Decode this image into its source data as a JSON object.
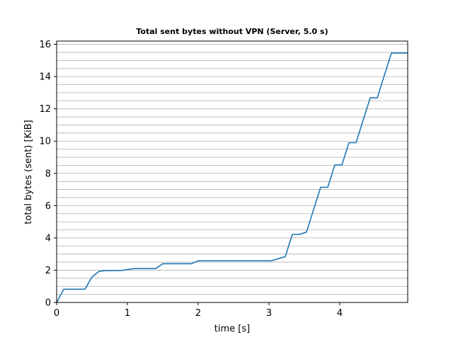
{
  "chart_data": {
    "type": "line",
    "title": "Total sent bytes without VPN (Server, 5.0 s)",
    "xlabel": "time [s]",
    "ylabel": "total bytes (sent) [KiB]",
    "xlim": [
      0,
      4.96
    ],
    "ylim": [
      0,
      16.2
    ],
    "xticks": [
      0,
      1,
      2,
      3,
      4
    ],
    "yticks": [
      0,
      2,
      4,
      6,
      8,
      10,
      12,
      14,
      16
    ],
    "grid": {
      "horizontal": true,
      "vertical": false,
      "minor_y_step": 0.5
    },
    "legend": "none",
    "color": "#1f77b4",
    "series": [
      {
        "x": [
          0,
          0.1,
          0.4,
          0.5,
          0.6,
          0.7,
          0.9,
          1.1,
          1.4,
          1.5,
          1.9,
          2.0,
          3.03,
          3.23,
          3.33,
          3.43,
          3.53,
          3.73,
          3.83,
          3.93,
          4.03,
          4.13,
          4.23,
          4.43,
          4.53,
          4.73,
          4.96
        ],
        "y": [
          0,
          0.82,
          0.82,
          1.58,
          1.93,
          1.98,
          1.98,
          2.1,
          2.1,
          2.4,
          2.4,
          2.58,
          2.58,
          2.84,
          4.22,
          4.22,
          4.36,
          7.14,
          7.14,
          8.52,
          8.52,
          9.9,
          9.9,
          12.68,
          12.68,
          15.46,
          15.46
        ]
      }
    ]
  }
}
